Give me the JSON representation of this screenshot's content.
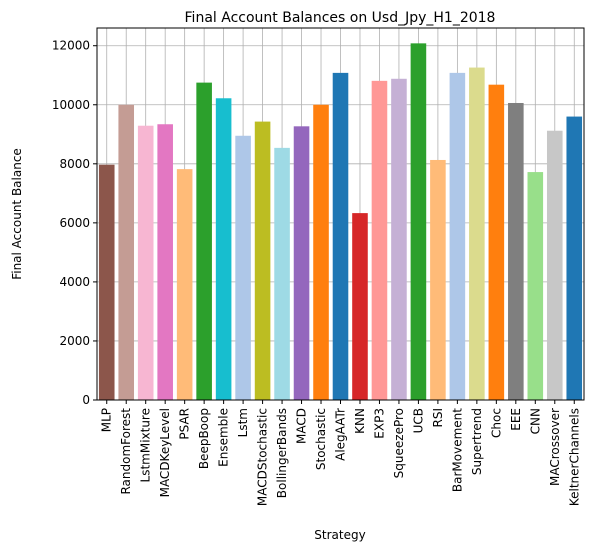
{
  "chart_data": {
    "type": "bar",
    "title": "Final Account Balances on Usd_Jpy_H1_2018",
    "xlabel": "Strategy",
    "ylabel": "Final Account Balance",
    "ylim": [
      0,
      12600
    ],
    "yticks": [
      "0",
      "2000",
      "4000",
      "6000",
      "8000",
      "10000",
      "12000"
    ],
    "grid": true,
    "categories": [
      "MLP",
      "RandomForest",
      "LstmMixture",
      "MACDKeyLevel",
      "PSAR",
      "BeepBoop",
      "Ensemble",
      "Lstm",
      "MACDStochastic",
      "BollingerBands",
      "MACD",
      "Stochastic",
      "AlegAATr",
      "KNN",
      "EXP3",
      "SqueezePro",
      "UCB",
      "RSI",
      "BarMovement",
      "Supertrend",
      "Choc",
      "EEE",
      "CNN",
      "MACrossover",
      "KeltnerChannels"
    ],
    "values": [
      7970,
      10000,
      9290,
      9340,
      7820,
      10750,
      10220,
      8950,
      9430,
      8540,
      9270,
      10000,
      11080,
      6330,
      10810,
      10880,
      12080,
      8130,
      11080,
      11260,
      10680,
      10060,
      7720,
      9120,
      9600
    ],
    "colors": [
      "#8c564b",
      "#c49c94",
      "#f7b6d2",
      "#e377c2",
      "#ffbb78",
      "#2ca02c",
      "#17becf",
      "#aec7e8",
      "#bcbd22",
      "#9edae5",
      "#9467bd",
      "#ff7f0e",
      "#1f77b4",
      "#d62728",
      "#ff9896",
      "#c5b0d5",
      "#2ca02c",
      "#ffbb78",
      "#aec7e8",
      "#dbdb8d",
      "#ff7f0e",
      "#7f7f7f",
      "#98df8a",
      "#c7c7c7",
      "#1f77b4"
    ]
  }
}
